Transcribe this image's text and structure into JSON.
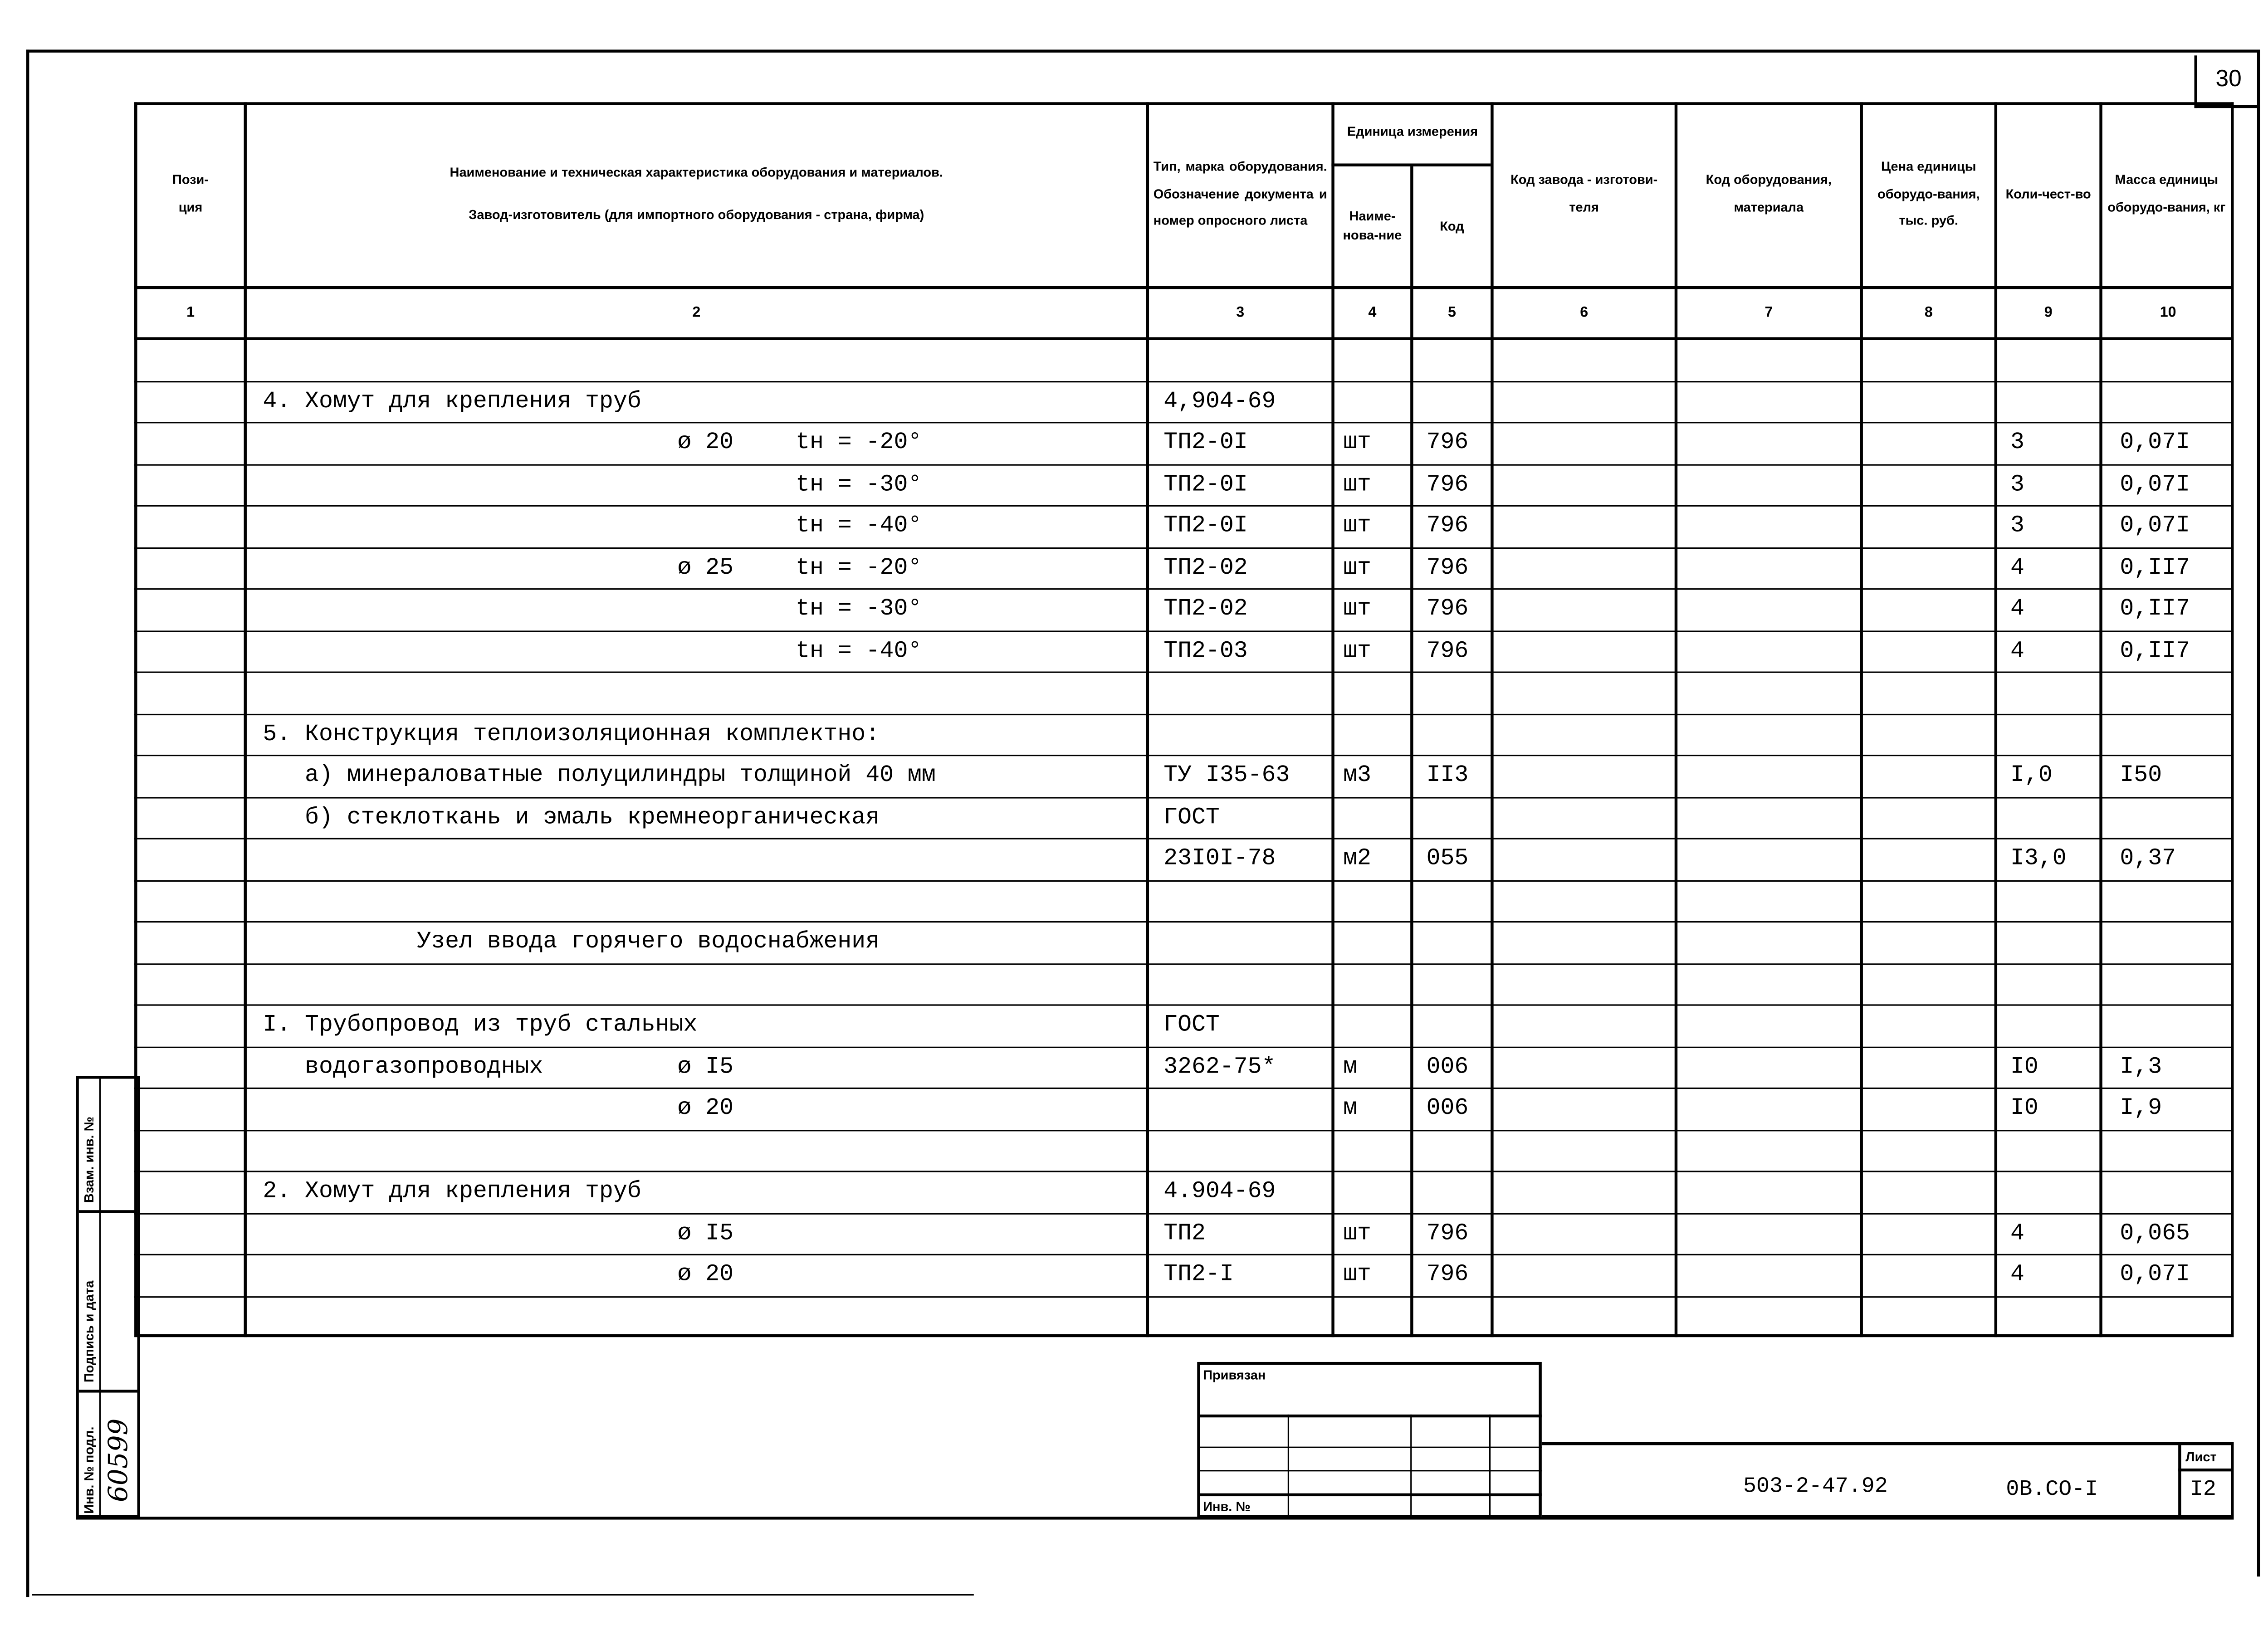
{
  "sheet_corner_number": "30",
  "header": {
    "col1": "Пози-\nция",
    "col2_line1": "Наименование и техническая характеристика оборудования и материалов.",
    "col2_line2": "Завод-изготовитель (для импортного оборудования - страна, фирма)",
    "col3": "Тип, марка оборудования. Обозначение документа и номер опросного листа",
    "unit_group": "Единица измерения",
    "col4": "Наиме-нова-ние",
    "col5": "Код",
    "col6": "Код завода - изготови-теля",
    "col7": "Код оборудования, материала",
    "col8": "Цена единицы оборудо-вания, тыс. руб.",
    "col9": "Коли-чест-во",
    "col10": "Масса единицы оборудо-вания, кг",
    "numbers": [
      "1",
      "2",
      "3",
      "4",
      "5",
      "6",
      "7",
      "8",
      "9",
      "10"
    ]
  },
  "rows": [
    {
      "name": "",
      "diam": "",
      "temp": "",
      "doc": "",
      "unit": "",
      "code": "",
      "qty": "",
      "mass": ""
    },
    {
      "name": "4. Хомут для крепления труб",
      "diam": "",
      "temp": "",
      "doc": "4,904-69",
      "unit": "",
      "code": "",
      "qty": "",
      "mass": ""
    },
    {
      "name": "",
      "diam": "ø 20",
      "temp": "tн = -20°",
      "doc": "ТП2-0I",
      "unit": "шт",
      "code": "796",
      "qty": "3",
      "mass": "0,07I"
    },
    {
      "name": "",
      "diam": "",
      "temp": "tн = -30°",
      "doc": "ТП2-0I",
      "unit": "шт",
      "code": "796",
      "qty": "3",
      "mass": "0,07I"
    },
    {
      "name": "",
      "diam": "",
      "temp": "tн = -40°",
      "doc": "ТП2-0I",
      "unit": "шт",
      "code": "796",
      "qty": "3",
      "mass": "0,07I"
    },
    {
      "name": "",
      "diam": "ø 25",
      "temp": "tн = -20°",
      "doc": "ТП2-02",
      "unit": "шт",
      "code": "796",
      "qty": "4",
      "mass": "0,II7"
    },
    {
      "name": "",
      "diam": "",
      "temp": "tн = -30°",
      "doc": "ТП2-02",
      "unit": "шт",
      "code": "796",
      "qty": "4",
      "mass": "0,II7"
    },
    {
      "name": "",
      "diam": "",
      "temp": "tн = -40°",
      "doc": "ТП2-03",
      "unit": "шт",
      "code": "796",
      "qty": "4",
      "mass": "0,II7"
    },
    {
      "name": "",
      "diam": "",
      "temp": "",
      "doc": "",
      "unit": "",
      "code": "",
      "qty": "",
      "mass": ""
    },
    {
      "name": "5. Конструкция теплоизоляционная комплектно:",
      "diam": "",
      "temp": "",
      "doc": "",
      "unit": "",
      "code": "",
      "qty": "",
      "mass": ""
    },
    {
      "name": "   а) минераловатные полуцилиндры толщиной 40 мм",
      "diam": "",
      "temp": "",
      "doc": "ТУ I35-63",
      "unit": "м3",
      "code": "II3",
      "qty": "I,0",
      "mass": "I50"
    },
    {
      "name": "   б) стеклоткань и эмаль кремнеорганическая",
      "diam": "",
      "temp": "",
      "doc": "ГОСТ",
      "unit": "",
      "code": "",
      "qty": "",
      "mass": ""
    },
    {
      "name": "",
      "diam": "",
      "temp": "",
      "doc": "23I0I-78",
      "unit": "м2",
      "code": "055",
      "qty": "I3,0",
      "mass": "0,37"
    },
    {
      "name": "",
      "diam": "",
      "temp": "",
      "doc": "",
      "unit": "",
      "code": "",
      "qty": "",
      "mass": ""
    },
    {
      "name": "           Узел ввода горячего водоснабжения",
      "diam": "",
      "temp": "",
      "doc": "",
      "unit": "",
      "code": "",
      "qty": "",
      "mass": ""
    },
    {
      "name": "",
      "diam": "",
      "temp": "",
      "doc": "",
      "unit": "",
      "code": "",
      "qty": "",
      "mass": ""
    },
    {
      "name": "I. Трубопровод из труб стальных",
      "diam": "",
      "temp": "",
      "doc": "ГОСТ",
      "unit": "",
      "code": "",
      "qty": "",
      "mass": ""
    },
    {
      "name": "   водогазопроводных",
      "diam": "ø I5",
      "temp": "",
      "doc": "3262-75*",
      "unit": "м",
      "code": "006",
      "qty": "I0",
      "mass": "I,3"
    },
    {
      "name": "",
      "diam": "ø 20",
      "temp": "",
      "doc": "",
      "unit": "м",
      "code": "006",
      "qty": "I0",
      "mass": "I,9"
    },
    {
      "name": "",
      "diam": "",
      "temp": "",
      "doc": "",
      "unit": "",
      "code": "",
      "qty": "",
      "mass": ""
    },
    {
      "name": "2. Хомут для крепления труб",
      "diam": "",
      "temp": "",
      "doc": "4.904-69",
      "unit": "",
      "code": "",
      "qty": "",
      "mass": ""
    },
    {
      "name": "",
      "diam": "ø I5",
      "temp": "",
      "doc": "ТП2",
      "unit": "шт",
      "code": "796",
      "qty": "4",
      "mass": "0,065"
    },
    {
      "name": "",
      "diam": "ø 20",
      "temp": "",
      "doc": "ТП2-I",
      "unit": "шт",
      "code": "796",
      "qty": "4",
      "mass": "0,07I"
    },
    {
      "name": "",
      "diam": "",
      "temp": "",
      "doc": "",
      "unit": "",
      "code": "",
      "qty": "",
      "mass": ""
    }
  ],
  "stamp": {
    "bound_label": "Привязан",
    "inv_label": "Инв. №",
    "doc_code": "503-2-47.92",
    "sheet_code": "0В.СО-I",
    "sheet_label": "Лист",
    "sheet_number": "I2"
  },
  "side_strip": {
    "replace_inv": "Взам. инв. №",
    "signature_date": "Подпись и дата",
    "orig_inv": "Инв. № подл.",
    "orig_inv_value": "60599"
  }
}
